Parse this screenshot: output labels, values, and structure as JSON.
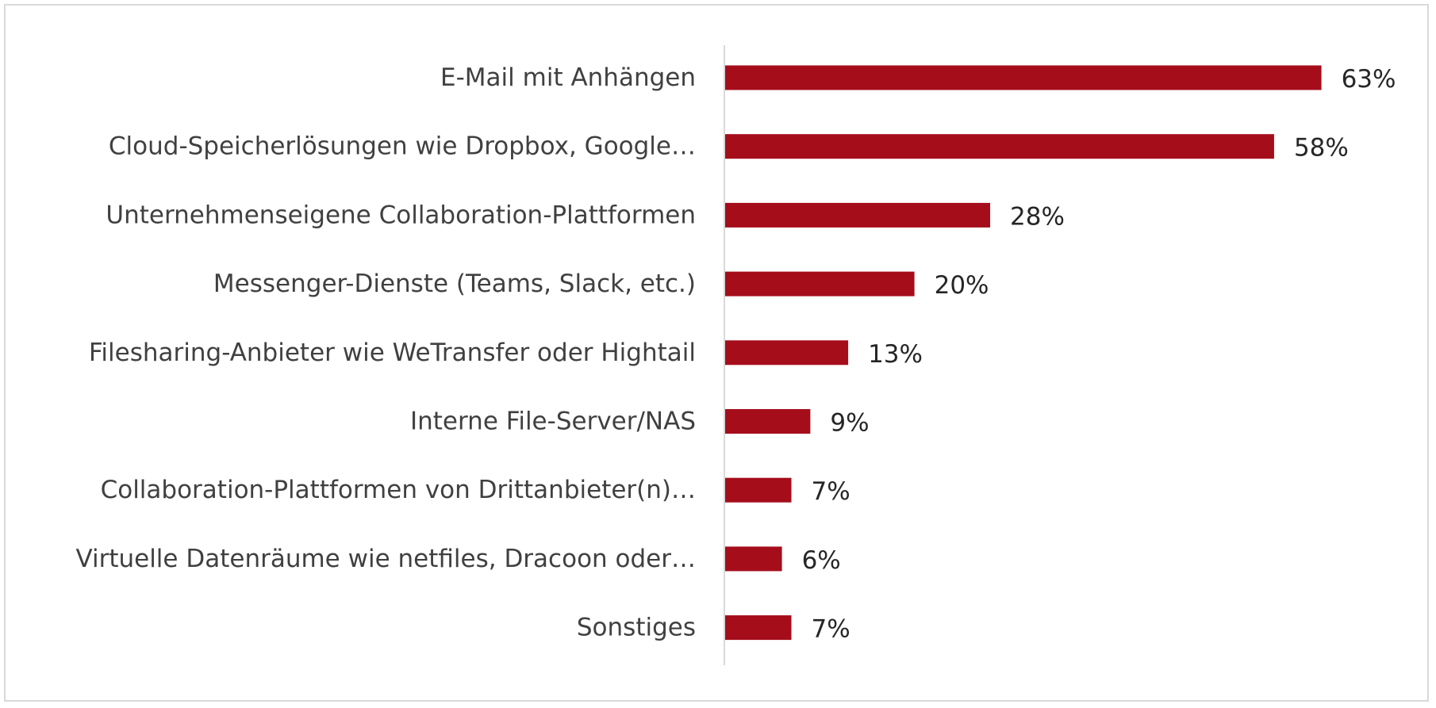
{
  "chart_data": {
    "type": "bar",
    "orientation": "horizontal",
    "categories": [
      "E-Mail mit Anhängen",
      "Cloud-Speicherlösungen wie Dropbox, Google…",
      "Unternehmenseigene Collaboration-Plattformen",
      "Messenger-Dienste (Teams, Slack, etc.)",
      "Filesharing-Anbieter wie WeTransfer oder Hightail",
      "Interne File-Server/NAS",
      "Collaboration-Plattformen von Drittanbieter(n)…",
      "Virtuelle Datenräume wie netfiles, Dracoon oder…",
      "Sonstiges"
    ],
    "values": [
      63,
      58,
      28,
      20,
      13,
      9,
      7,
      6,
      7
    ],
    "value_labels": [
      "63%",
      "58%",
      "28%",
      "20%",
      "13%",
      "9%",
      "7%",
      "6%",
      "7%"
    ],
    "unit": "%",
    "xlim": [
      0,
      70
    ],
    "grid": false,
    "legend": "none",
    "bar_color": "#a50d1b",
    "axis_color": "#d9d9d9"
  }
}
